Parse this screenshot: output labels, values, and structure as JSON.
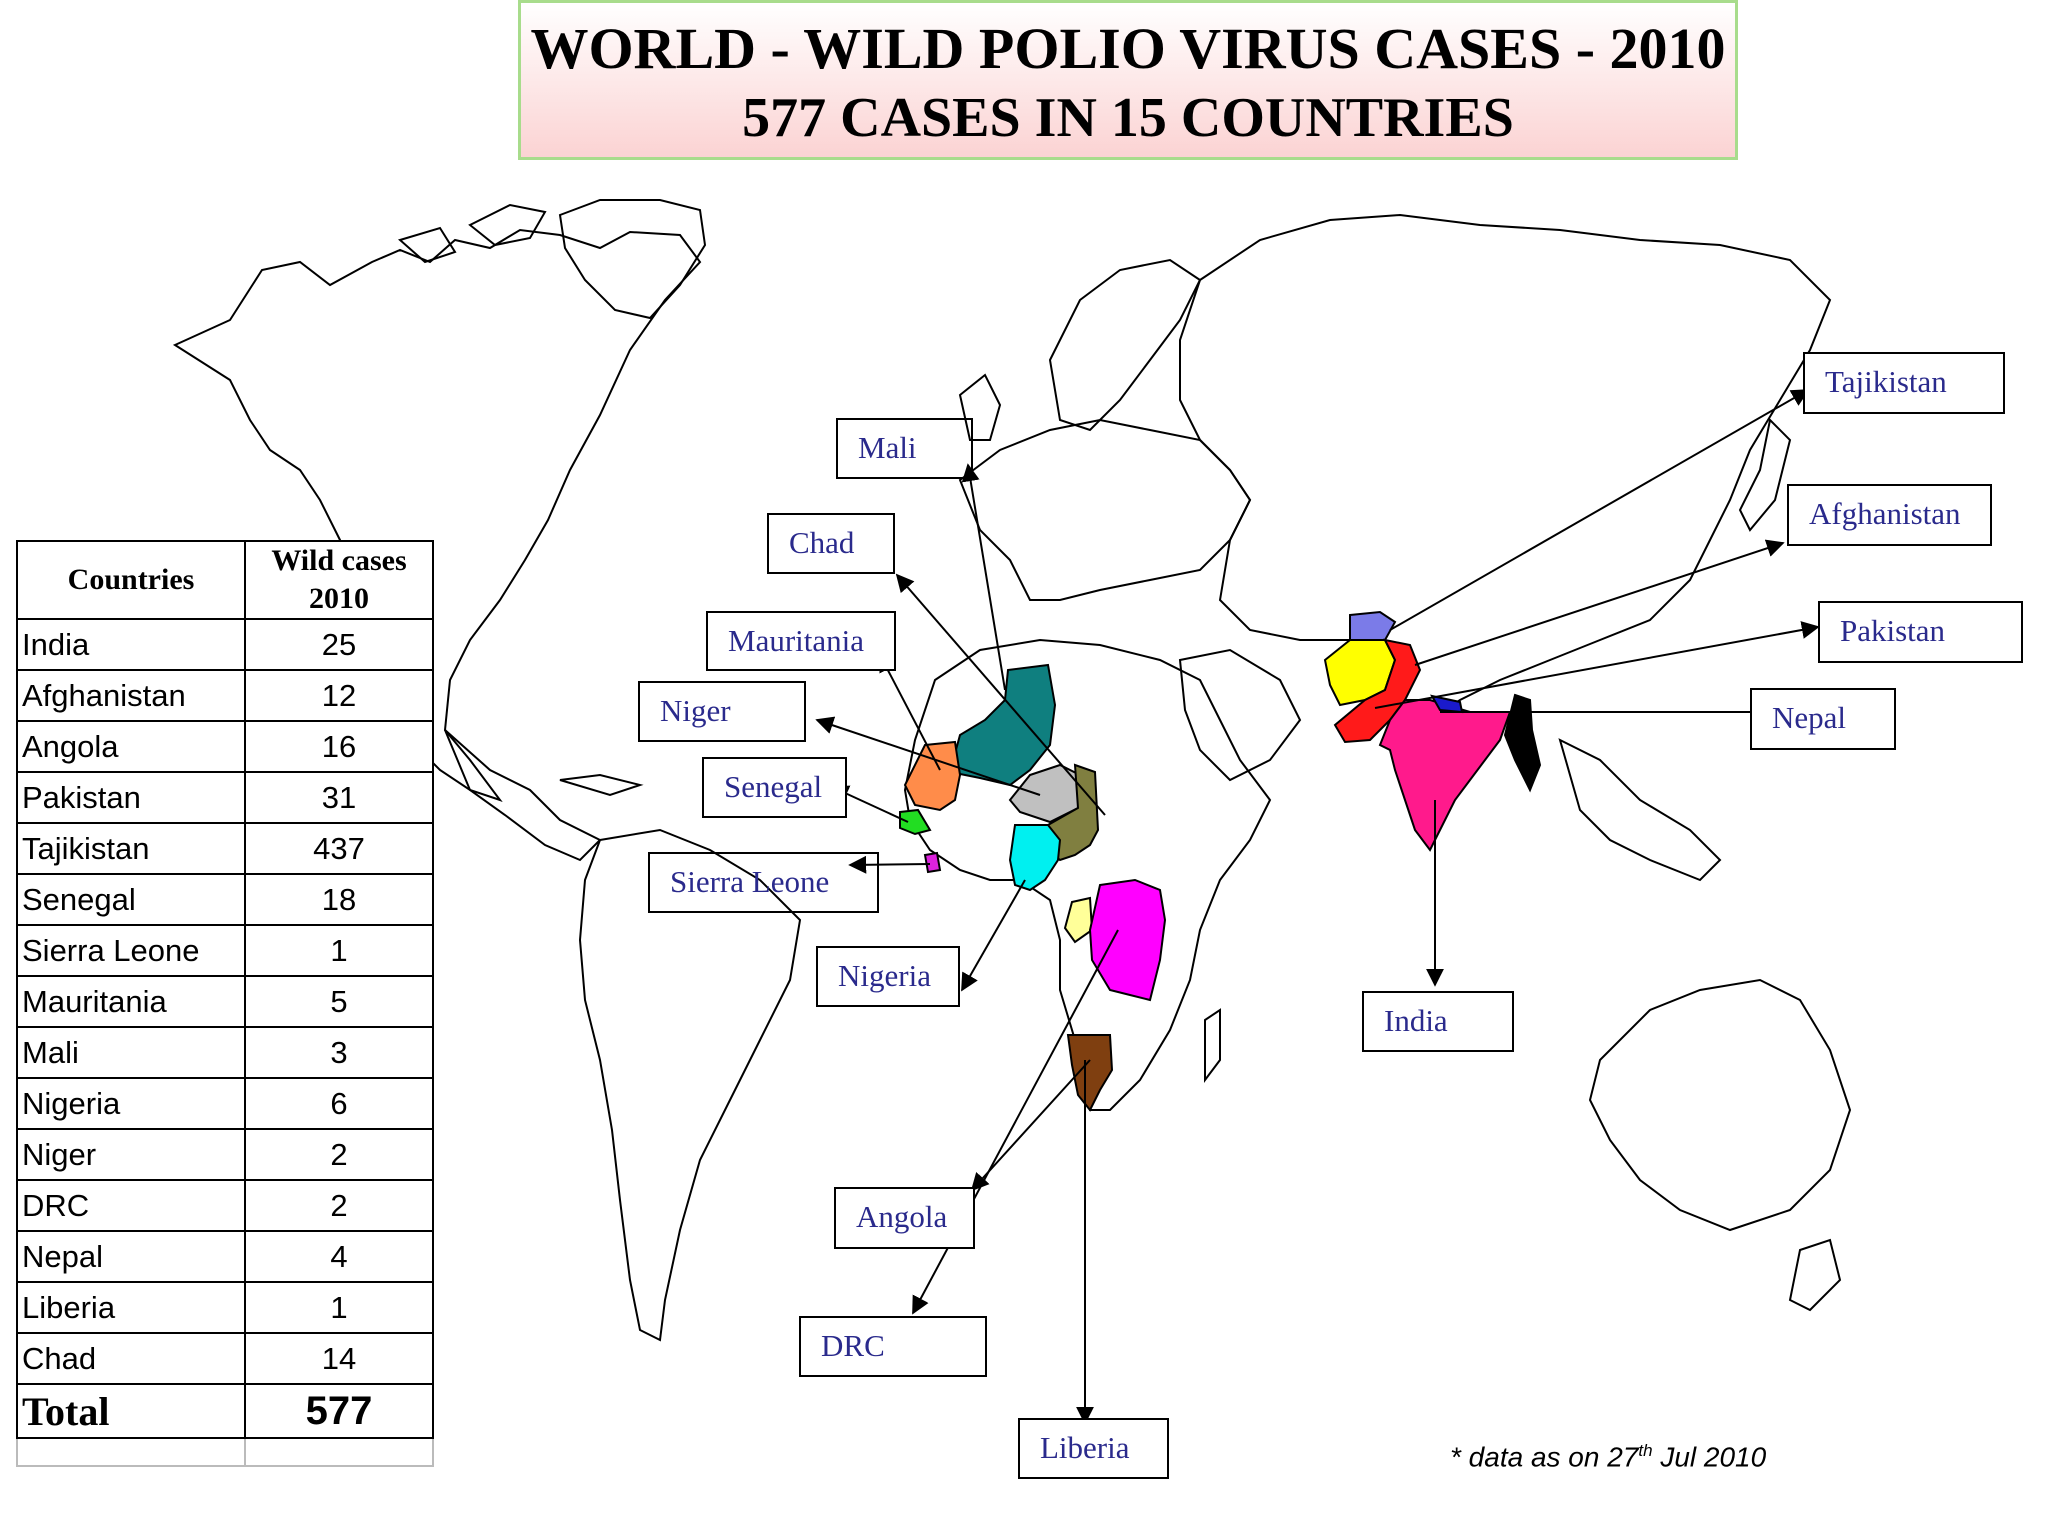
{
  "title": {
    "line1": "WORLD - WILD POLIO VIRUS CASES - 2010",
    "line2": "577 CASES IN 15 COUNTRIES"
  },
  "table": {
    "header_country": "Countries",
    "header_cases_line1": "Wild cases",
    "header_cases_line2": "2010",
    "rows": [
      {
        "country": "India",
        "cases": "25"
      },
      {
        "country": "Afghanistan",
        "cases": "12"
      },
      {
        "country": "Angola",
        "cases": "16"
      },
      {
        "country": "Pakistan",
        "cases": "31"
      },
      {
        "country": "Tajikistan",
        "cases": "437"
      },
      {
        "country": "Senegal",
        "cases": "18"
      },
      {
        "country": "Sierra Leone",
        "cases": "1"
      },
      {
        "country": "Mauritania",
        "cases": "5"
      },
      {
        "country": "Mali",
        "cases": "3"
      },
      {
        "country": "Nigeria",
        "cases": "6"
      },
      {
        "country": "Niger",
        "cases": "2"
      },
      {
        "country": "DRC",
        "cases": "2"
      },
      {
        "country": "Nepal",
        "cases": "4"
      },
      {
        "country": "Liberia",
        "cases": "1"
      },
      {
        "country": "Chad",
        "cases": "14"
      }
    ],
    "total_label": "Total",
    "total_value": "577"
  },
  "labels": {
    "tajikistan": "Tajikistan",
    "afghanistan": "Afghanistan",
    "pakistan": "Pakistan",
    "nepal": "Nepal",
    "india": "India",
    "mali": "Mali",
    "chad": "Chad",
    "mauritania": "Mauritania",
    "niger": "Niger",
    "senegal": "Senegal",
    "sierra_leone": "Sierra Leone",
    "nigeria": "Nigeria",
    "angola": "Angola",
    "drc": "DRC",
    "liberia": "Liberia"
  },
  "footnote": {
    "prefix": "* data as on 27",
    "sup": "th",
    "suffix": "  Jul 2010"
  },
  "colors": {
    "label_text": "#2a2a8c",
    "title_border": "#a8dc8c",
    "title_bg_bottom": "#fbd3d3",
    "tajikistan": "#7b7be8",
    "afghanistan": "#ffff00",
    "pakistan": "#ff1a1a",
    "india": "#ff1a8c",
    "nepal": "#1a1acc",
    "myanmar_region": "#000000",
    "mali": "#0f7f7f",
    "mauritania": "#ff8c4a",
    "niger": "#c0c0c0",
    "chad": "#807f40",
    "senegal": "#22dd22",
    "sierra_leone": "#dd22dd",
    "nigeria": "#00f0f0",
    "drc": "#ff00ff",
    "angola": "#7f3f10",
    "congo_small": "#ffff99"
  }
}
